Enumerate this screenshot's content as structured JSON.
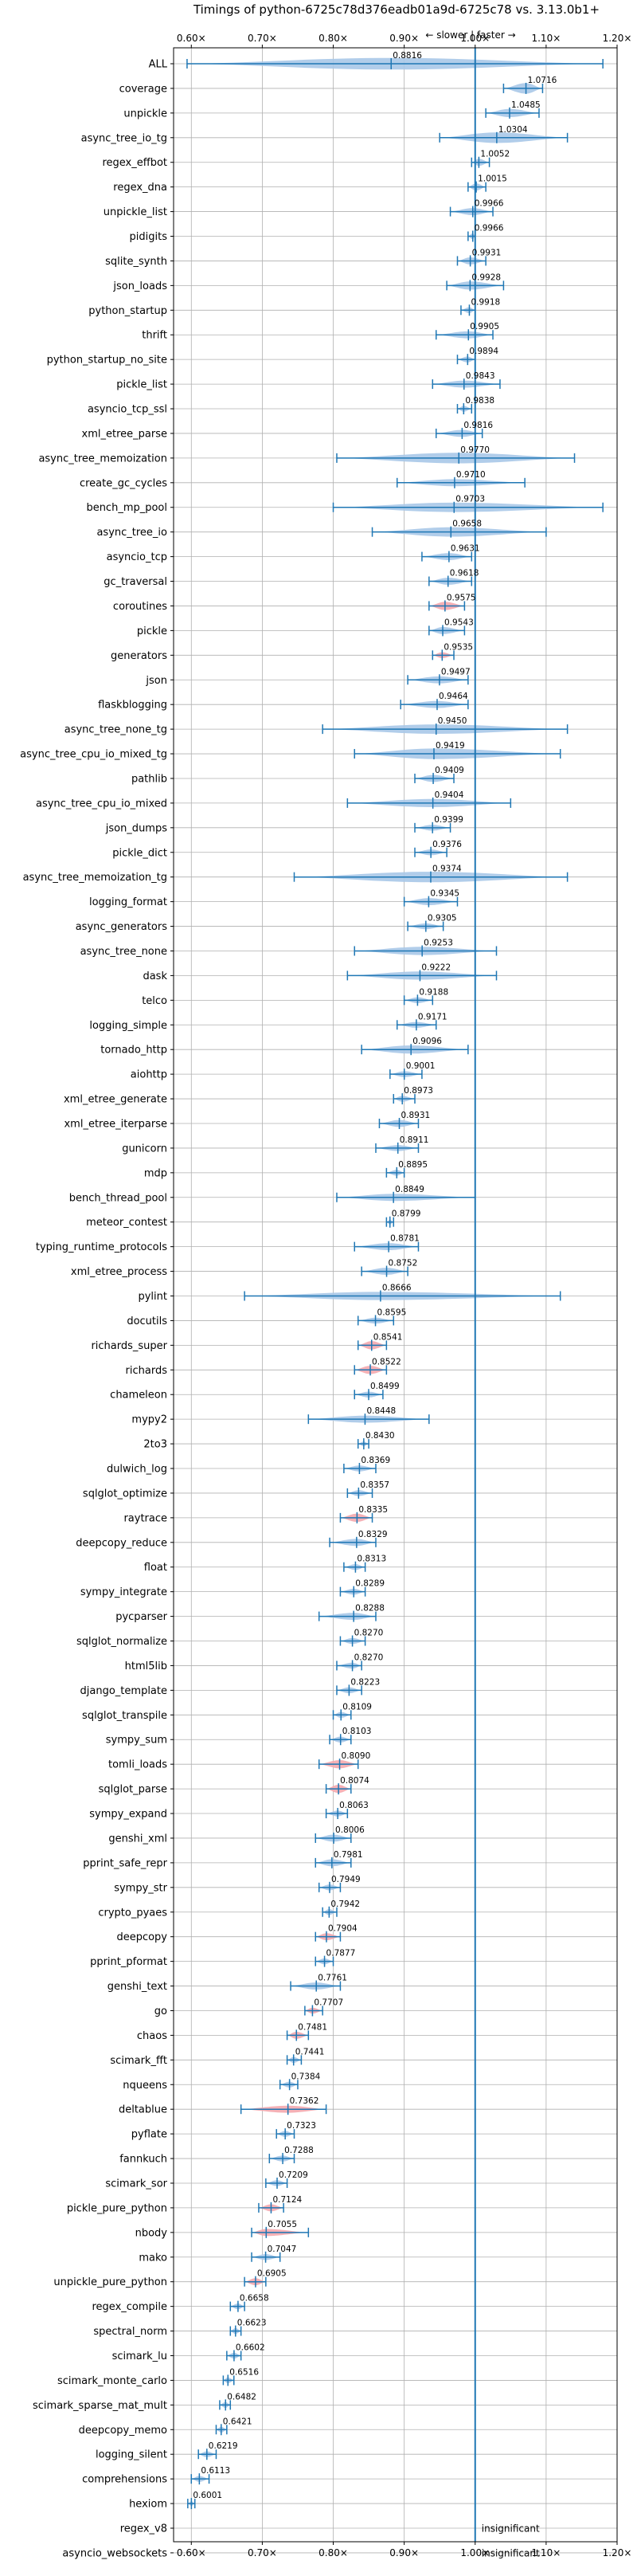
{
  "chart_data": {
    "type": "violin",
    "title": "Timings of python-6725c78d376eadb01a9d-6725c78 vs. 3.13.0b1+",
    "direction_label": "← slower | faster →",
    "xlabel": "",
    "ylabel": "",
    "xlim": [
      0.575,
      1.2
    ],
    "xticks": [
      0.6,
      0.7,
      0.8,
      0.9,
      1.0,
      1.1,
      1.2
    ],
    "xtick_labels": [
      "0.60×",
      "0.70×",
      "0.80×",
      "0.90×",
      "1.00×",
      "1.10×",
      "1.20×"
    ],
    "grid": true,
    "reference_line": 1.0,
    "insignificant_label": "insignificant",
    "colors": {
      "normal": "#1f77b4",
      "violin": "#a8c8e8",
      "highlight": "#f4a8ae",
      "refline": "#1f77b4",
      "grid": "#b0b0b0"
    },
    "benchmarks": [
      {
        "name": "ALL",
        "median": 0.8816,
        "min": 0.594,
        "max": 1.18,
        "width": 0.5,
        "label": "0.8816"
      },
      {
        "name": "coverage",
        "median": 1.0716,
        "min": 1.04,
        "max": 1.095,
        "width": 0.45,
        "label": "1.0716"
      },
      {
        "name": "unpickle",
        "median": 1.0485,
        "min": 1.015,
        "max": 1.09,
        "width": 0.35,
        "label": "1.0485"
      },
      {
        "name": "async_tree_io_tg",
        "median": 1.0304,
        "min": 0.95,
        "max": 1.13,
        "width": 0.45,
        "label": "1.0304"
      },
      {
        "name": "regex_effbot",
        "median": 1.0052,
        "min": 0.995,
        "max": 1.02,
        "width": 0.3,
        "label": "1.0052"
      },
      {
        "name": "regex_dna",
        "median": 1.0015,
        "min": 0.99,
        "max": 1.015,
        "width": 0.3,
        "label": "1.0015"
      },
      {
        "name": "unpickle_list",
        "median": 0.9966,
        "min": 0.965,
        "max": 1.025,
        "width": 0.3,
        "label": "0.9966"
      },
      {
        "name": "pidigits",
        "median": 0.9966,
        "min": 0.99,
        "max": 1.0,
        "width": 0.25,
        "label": "0.9966"
      },
      {
        "name": "sqlite_synth",
        "median": 0.9931,
        "min": 0.975,
        "max": 1.015,
        "width": 0.3,
        "label": "0.9931"
      },
      {
        "name": "json_loads",
        "median": 0.9928,
        "min": 0.96,
        "max": 1.04,
        "width": 0.35,
        "label": "0.9928"
      },
      {
        "name": "python_startup",
        "median": 0.9918,
        "min": 0.98,
        "max": 1.0,
        "width": 0.25,
        "label": "0.9918"
      },
      {
        "name": "thrift",
        "median": 0.9905,
        "min": 0.945,
        "max": 1.025,
        "width": 0.3,
        "label": "0.9905"
      },
      {
        "name": "python_startup_no_site",
        "median": 0.9894,
        "min": 0.975,
        "max": 1.0,
        "width": 0.25,
        "label": "0.9894"
      },
      {
        "name": "pickle_list",
        "median": 0.9843,
        "min": 0.94,
        "max": 1.035,
        "width": 0.3,
        "label": "0.9843"
      },
      {
        "name": "asyncio_tcp_ssl",
        "median": 0.9838,
        "min": 0.975,
        "max": 0.995,
        "width": 0.25,
        "label": "0.9838"
      },
      {
        "name": "xml_etree_parse",
        "median": 0.9816,
        "min": 0.945,
        "max": 1.01,
        "width": 0.3,
        "label": "0.9816"
      },
      {
        "name": "async_tree_memoization",
        "median": 0.977,
        "min": 0.805,
        "max": 1.14,
        "width": 0.45,
        "label": "0.9770"
      },
      {
        "name": "create_gc_cycles",
        "median": 0.971,
        "min": 0.89,
        "max": 1.07,
        "width": 0.3,
        "label": "0.9710"
      },
      {
        "name": "bench_mp_pool",
        "median": 0.9703,
        "min": 0.8,
        "max": 1.18,
        "width": 0.4,
        "label": "0.9703"
      },
      {
        "name": "async_tree_io",
        "median": 0.9658,
        "min": 0.855,
        "max": 1.1,
        "width": 0.4,
        "label": "0.9658"
      },
      {
        "name": "asyncio_tcp",
        "median": 0.9631,
        "min": 0.925,
        "max": 0.995,
        "width": 0.3,
        "label": "0.9631"
      },
      {
        "name": "gc_traversal",
        "median": 0.9618,
        "min": 0.935,
        "max": 0.995,
        "width": 0.3,
        "label": "0.9618"
      },
      {
        "name": "coroutines",
        "median": 0.9575,
        "min": 0.935,
        "max": 0.985,
        "width": 0.35,
        "label": "0.9575",
        "highlight": true
      },
      {
        "name": "pickle",
        "median": 0.9543,
        "min": 0.935,
        "max": 0.985,
        "width": 0.3,
        "label": "0.9543"
      },
      {
        "name": "generators",
        "median": 0.9535,
        "min": 0.94,
        "max": 0.97,
        "width": 0.25,
        "label": "0.9535",
        "highlight": true
      },
      {
        "name": "json",
        "median": 0.9497,
        "min": 0.905,
        "max": 0.99,
        "width": 0.3,
        "label": "0.9497"
      },
      {
        "name": "flaskblogging",
        "median": 0.9464,
        "min": 0.895,
        "max": 0.99,
        "width": 0.3,
        "label": "0.9464"
      },
      {
        "name": "async_tree_none_tg",
        "median": 0.945,
        "min": 0.785,
        "max": 1.13,
        "width": 0.4,
        "label": "0.9450"
      },
      {
        "name": "async_tree_cpu_io_mixed_tg",
        "median": 0.9419,
        "min": 0.83,
        "max": 1.12,
        "width": 0.45,
        "label": "0.9419"
      },
      {
        "name": "pathlib",
        "median": 0.9409,
        "min": 0.915,
        "max": 0.97,
        "width": 0.3,
        "label": "0.9409"
      },
      {
        "name": "async_tree_cpu_io_mixed",
        "median": 0.9404,
        "min": 0.82,
        "max": 1.05,
        "width": 0.35,
        "label": "0.9404"
      },
      {
        "name": "json_dumps",
        "median": 0.9399,
        "min": 0.915,
        "max": 0.965,
        "width": 0.25,
        "label": "0.9399"
      },
      {
        "name": "pickle_dict",
        "median": 0.9376,
        "min": 0.915,
        "max": 0.96,
        "width": 0.25,
        "label": "0.9376"
      },
      {
        "name": "async_tree_memoization_tg",
        "median": 0.9374,
        "min": 0.745,
        "max": 1.13,
        "width": 0.45,
        "label": "0.9374"
      },
      {
        "name": "logging_format",
        "median": 0.9345,
        "min": 0.9,
        "max": 0.975,
        "width": 0.3,
        "label": "0.9345"
      },
      {
        "name": "async_generators",
        "median": 0.9305,
        "min": 0.905,
        "max": 0.955,
        "width": 0.25,
        "label": "0.9305"
      },
      {
        "name": "async_tree_none",
        "median": 0.9253,
        "min": 0.83,
        "max": 1.03,
        "width": 0.35,
        "label": "0.9253"
      },
      {
        "name": "dask",
        "median": 0.9222,
        "min": 0.82,
        "max": 1.03,
        "width": 0.35,
        "label": "0.9222"
      },
      {
        "name": "telco",
        "median": 0.9188,
        "min": 0.9,
        "max": 0.94,
        "width": 0.25,
        "label": "0.9188"
      },
      {
        "name": "logging_simple",
        "median": 0.9171,
        "min": 0.89,
        "max": 0.945,
        "width": 0.25,
        "label": "0.9171"
      },
      {
        "name": "tornado_http",
        "median": 0.9096,
        "min": 0.84,
        "max": 0.99,
        "width": 0.35,
        "label": "0.9096"
      },
      {
        "name": "aiohttp",
        "median": 0.9001,
        "min": 0.88,
        "max": 0.925,
        "width": 0.25,
        "label": "0.9001"
      },
      {
        "name": "xml_etree_generate",
        "median": 0.8973,
        "min": 0.885,
        "max": 0.915,
        "width": 0.25,
        "label": "0.8973"
      },
      {
        "name": "xml_etree_iterparse",
        "median": 0.8931,
        "min": 0.865,
        "max": 0.92,
        "width": 0.3,
        "label": "0.8931"
      },
      {
        "name": "gunicorn",
        "median": 0.8911,
        "min": 0.86,
        "max": 0.92,
        "width": 0.25,
        "label": "0.8911"
      },
      {
        "name": "mdp",
        "median": 0.8895,
        "min": 0.875,
        "max": 0.9,
        "width": 0.25,
        "label": "0.8895"
      },
      {
        "name": "bench_thread_pool",
        "median": 0.8849,
        "min": 0.805,
        "max": 1.0,
        "width": 0.3,
        "label": "0.8849"
      },
      {
        "name": "meteor_contest",
        "median": 0.8799,
        "min": 0.875,
        "max": 0.885,
        "width": 0.2,
        "label": "0.8799"
      },
      {
        "name": "typing_runtime_protocols",
        "median": 0.8781,
        "min": 0.83,
        "max": 0.92,
        "width": 0.3,
        "label": "0.8781"
      },
      {
        "name": "xml_etree_process",
        "median": 0.8752,
        "min": 0.84,
        "max": 0.905,
        "width": 0.3,
        "label": "0.8752"
      },
      {
        "name": "pylint",
        "median": 0.8666,
        "min": 0.675,
        "max": 1.12,
        "width": 0.35,
        "label": "0.8666"
      },
      {
        "name": "docutils",
        "median": 0.8595,
        "min": 0.835,
        "max": 0.885,
        "width": 0.25,
        "label": "0.8595"
      },
      {
        "name": "richards_super",
        "median": 0.8541,
        "min": 0.835,
        "max": 0.875,
        "width": 0.35,
        "label": "0.8541",
        "highlight": true
      },
      {
        "name": "richards",
        "median": 0.8522,
        "min": 0.83,
        "max": 0.875,
        "width": 0.35,
        "label": "0.8522",
        "highlight": true
      },
      {
        "name": "chameleon",
        "median": 0.8499,
        "min": 0.83,
        "max": 0.87,
        "width": 0.25,
        "label": "0.8499"
      },
      {
        "name": "mypy2",
        "median": 0.8448,
        "min": 0.765,
        "max": 0.935,
        "width": 0.3,
        "label": "0.8448"
      },
      {
        "name": "2to3",
        "median": 0.843,
        "min": 0.835,
        "max": 0.85,
        "width": 0.2,
        "label": "0.8430"
      },
      {
        "name": "dulwich_log",
        "median": 0.8369,
        "min": 0.815,
        "max": 0.86,
        "width": 0.25,
        "label": "0.8369"
      },
      {
        "name": "sqlglot_optimize",
        "median": 0.8357,
        "min": 0.82,
        "max": 0.855,
        "width": 0.25,
        "label": "0.8357"
      },
      {
        "name": "raytrace",
        "median": 0.8335,
        "min": 0.81,
        "max": 0.855,
        "width": 0.35,
        "label": "0.8335",
        "highlight": true
      },
      {
        "name": "deepcopy_reduce",
        "median": 0.8329,
        "min": 0.795,
        "max": 0.86,
        "width": 0.3,
        "label": "0.8329"
      },
      {
        "name": "float",
        "median": 0.8313,
        "min": 0.815,
        "max": 0.845,
        "width": 0.25,
        "label": "0.8313"
      },
      {
        "name": "sympy_integrate",
        "median": 0.8289,
        "min": 0.81,
        "max": 0.845,
        "width": 0.25,
        "label": "0.8289"
      },
      {
        "name": "pycparser",
        "median": 0.8288,
        "min": 0.78,
        "max": 0.86,
        "width": 0.3,
        "label": "0.8288"
      },
      {
        "name": "sqlglot_normalize",
        "median": 0.827,
        "min": 0.81,
        "max": 0.845,
        "width": 0.25,
        "label": "0.8270"
      },
      {
        "name": "html5lib",
        "median": 0.827,
        "min": 0.805,
        "max": 0.84,
        "width": 0.25,
        "label": "0.8270"
      },
      {
        "name": "django_template",
        "median": 0.8223,
        "min": 0.805,
        "max": 0.84,
        "width": 0.25,
        "label": "0.8223"
      },
      {
        "name": "sqlglot_transpile",
        "median": 0.8109,
        "min": 0.8,
        "max": 0.825,
        "width": 0.25,
        "label": "0.8109"
      },
      {
        "name": "sympy_sum",
        "median": 0.8103,
        "min": 0.795,
        "max": 0.825,
        "width": 0.25,
        "label": "0.8103"
      },
      {
        "name": "tomli_loads",
        "median": 0.809,
        "min": 0.78,
        "max": 0.835,
        "width": 0.35,
        "label": "0.8090",
        "highlight": true
      },
      {
        "name": "sqlglot_parse",
        "median": 0.8074,
        "min": 0.79,
        "max": 0.825,
        "width": 0.35,
        "label": "0.8074",
        "highlight": true
      },
      {
        "name": "sympy_expand",
        "median": 0.8063,
        "min": 0.79,
        "max": 0.82,
        "width": 0.25,
        "label": "0.8063"
      },
      {
        "name": "genshi_xml",
        "median": 0.8006,
        "min": 0.775,
        "max": 0.825,
        "width": 0.3,
        "label": "0.8006"
      },
      {
        "name": "pprint_safe_repr",
        "median": 0.7981,
        "min": 0.775,
        "max": 0.825,
        "width": 0.3,
        "label": "0.7981"
      },
      {
        "name": "sympy_str",
        "median": 0.7949,
        "min": 0.78,
        "max": 0.81,
        "width": 0.25,
        "label": "0.7949"
      },
      {
        "name": "crypto_pyaes",
        "median": 0.7942,
        "min": 0.785,
        "max": 0.805,
        "width": 0.25,
        "label": "0.7942"
      },
      {
        "name": "deepcopy",
        "median": 0.7904,
        "min": 0.775,
        "max": 0.81,
        "width": 0.3,
        "label": "0.7904",
        "highlight": true
      },
      {
        "name": "pprint_pformat",
        "median": 0.7877,
        "min": 0.775,
        "max": 0.8,
        "width": 0.25,
        "label": "0.7877"
      },
      {
        "name": "genshi_text",
        "median": 0.7761,
        "min": 0.74,
        "max": 0.81,
        "width": 0.3,
        "label": "0.7761"
      },
      {
        "name": "go",
        "median": 0.7707,
        "min": 0.76,
        "max": 0.785,
        "width": 0.25,
        "label": "0.7707",
        "highlight": true
      },
      {
        "name": "chaos",
        "median": 0.7481,
        "min": 0.735,
        "max": 0.765,
        "width": 0.3,
        "label": "0.7481",
        "highlight": true
      },
      {
        "name": "scimark_fft",
        "median": 0.7441,
        "min": 0.735,
        "max": 0.755,
        "width": 0.25,
        "label": "0.7441"
      },
      {
        "name": "nqueens",
        "median": 0.7384,
        "min": 0.725,
        "max": 0.75,
        "width": 0.25,
        "label": "0.7384"
      },
      {
        "name": "deltablue",
        "median": 0.7362,
        "min": 0.67,
        "max": 0.79,
        "width": 0.3,
        "label": "0.7362",
        "highlight": true
      },
      {
        "name": "pyflate",
        "median": 0.7323,
        "min": 0.72,
        "max": 0.745,
        "width": 0.25,
        "label": "0.7323"
      },
      {
        "name": "fannkuch",
        "median": 0.7288,
        "min": 0.71,
        "max": 0.745,
        "width": 0.25,
        "label": "0.7288"
      },
      {
        "name": "scimark_sor",
        "median": 0.7209,
        "min": 0.705,
        "max": 0.735,
        "width": 0.25,
        "label": "0.7209"
      },
      {
        "name": "pickle_pure_python",
        "median": 0.7124,
        "min": 0.695,
        "max": 0.73,
        "width": 0.3,
        "label": "0.7124",
        "highlight": true
      },
      {
        "name": "nbody",
        "median": 0.7055,
        "min": 0.685,
        "max": 0.765,
        "width": 0.3,
        "label": "0.7055",
        "highlight": true
      },
      {
        "name": "mako",
        "median": 0.7047,
        "min": 0.685,
        "max": 0.725,
        "width": 0.25,
        "label": "0.7047"
      },
      {
        "name": "unpickle_pure_python",
        "median": 0.6905,
        "min": 0.675,
        "max": 0.705,
        "width": 0.3,
        "label": "0.6905",
        "highlight": true
      },
      {
        "name": "regex_compile",
        "median": 0.6658,
        "min": 0.655,
        "max": 0.675,
        "width": 0.25,
        "label": "0.6658"
      },
      {
        "name": "spectral_norm",
        "median": 0.6623,
        "min": 0.655,
        "max": 0.67,
        "width": 0.25,
        "label": "0.6623"
      },
      {
        "name": "scimark_lu",
        "median": 0.6602,
        "min": 0.65,
        "max": 0.67,
        "width": 0.25,
        "label": "0.6602"
      },
      {
        "name": "scimark_monte_carlo",
        "median": 0.6516,
        "min": 0.645,
        "max": 0.66,
        "width": 0.25,
        "label": "0.6516"
      },
      {
        "name": "scimark_sparse_mat_mult",
        "median": 0.6482,
        "min": 0.64,
        "max": 0.655,
        "width": 0.25,
        "label": "0.6482"
      },
      {
        "name": "deepcopy_memo",
        "median": 0.6421,
        "min": 0.635,
        "max": 0.65,
        "width": 0.25,
        "label": "0.6421"
      },
      {
        "name": "logging_silent",
        "median": 0.6219,
        "min": 0.61,
        "max": 0.635,
        "width": 0.25,
        "label": "0.6219"
      },
      {
        "name": "comprehensions",
        "median": 0.6113,
        "min": 0.6,
        "max": 0.625,
        "width": 0.25,
        "label": "0.6113"
      },
      {
        "name": "hexiom",
        "median": 0.6001,
        "min": 0.595,
        "max": 0.605,
        "width": 0.2,
        "label": "0.6001"
      },
      {
        "name": "regex_v8",
        "insignificant": true
      },
      {
        "name": "asyncio_websockets",
        "insignificant": true
      }
    ]
  }
}
